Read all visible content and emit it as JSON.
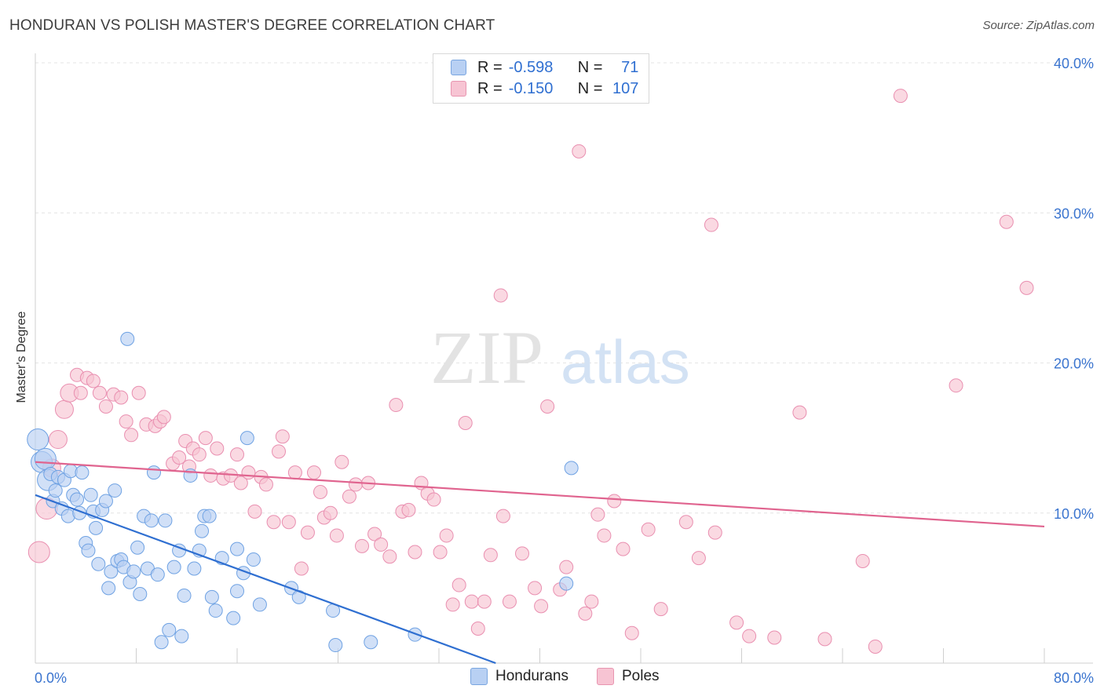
{
  "title": "HONDURAN VS POLISH MASTER'S DEGREE CORRELATION CHART",
  "source": "Source: ZipAtlas.com",
  "watermark": {
    "zip": "ZIP",
    "atlas": "atlas"
  },
  "legend_top": {
    "rows": [
      {
        "r_label": "R =",
        "r_value": "-0.598",
        "n_label": "N =",
        "n_value": "71"
      },
      {
        "r_label": "R =",
        "r_value": "-0.150",
        "n_label": "N =",
        "n_value": "107"
      }
    ]
  },
  "legend_bottom": {
    "hondurans": "Hondurans",
    "poles": "Poles"
  },
  "colors": {
    "blue": "#6fa2e3",
    "blue_fill": "#b8d0f3",
    "blue_line": "#2f6fd1",
    "pink": "#e98fb0",
    "pink_fill": "#f7c4d3",
    "pink_line": "#e0648f",
    "tick_text": "#3a74cf"
  },
  "chart_data": {
    "type": "scatter",
    "title": "HONDURAN VS POLISH MASTER'S DEGREE CORRELATION CHART",
    "ylabel": "Master's Degree",
    "xlabel": "",
    "xlim": [
      0,
      80
    ],
    "ylim": [
      0,
      40
    ],
    "x_tick_labels": [
      "0.0%",
      "80.0%"
    ],
    "y_ticks": [
      10,
      20,
      30,
      40
    ],
    "y_tick_labels": [
      "10.0%",
      "20.0%",
      "30.0%",
      "40.0%"
    ],
    "grid": true,
    "series": [
      {
        "name": "Hondurans",
        "R": -0.598,
        "N": 71,
        "trend": {
          "x": [
            0,
            36.5
          ],
          "y": [
            11.2,
            0.0
          ]
        },
        "points": [
          [
            0.2,
            14.9
          ],
          [
            0.5,
            13.4
          ],
          [
            0.8,
            13.6
          ],
          [
            1.0,
            12.2
          ],
          [
            1.2,
            12.6
          ],
          [
            1.4,
            10.8
          ],
          [
            1.6,
            11.5
          ],
          [
            1.8,
            12.4
          ],
          [
            2.1,
            10.3
          ],
          [
            2.3,
            12.2
          ],
          [
            2.6,
            9.8
          ],
          [
            2.8,
            12.8
          ],
          [
            3.0,
            11.2
          ],
          [
            3.3,
            10.9
          ],
          [
            3.5,
            10.0
          ],
          [
            3.7,
            12.7
          ],
          [
            4.0,
            8.0
          ],
          [
            4.2,
            7.5
          ],
          [
            4.4,
            11.2
          ],
          [
            4.6,
            10.1
          ],
          [
            4.8,
            9.0
          ],
          [
            5.0,
            6.6
          ],
          [
            5.3,
            10.2
          ],
          [
            5.6,
            10.8
          ],
          [
            5.8,
            5.0
          ],
          [
            6.0,
            6.1
          ],
          [
            6.3,
            11.5
          ],
          [
            6.5,
            6.8
          ],
          [
            6.8,
            6.9
          ],
          [
            7.0,
            6.4
          ],
          [
            7.3,
            21.6
          ],
          [
            7.5,
            5.4
          ],
          [
            7.8,
            6.1
          ],
          [
            8.1,
            7.7
          ],
          [
            8.3,
            4.6
          ],
          [
            8.6,
            9.8
          ],
          [
            8.9,
            6.3
          ],
          [
            9.2,
            9.5
          ],
          [
            9.4,
            12.7
          ],
          [
            9.7,
            5.9
          ],
          [
            10.0,
            1.4
          ],
          [
            10.3,
            9.5
          ],
          [
            10.6,
            2.2
          ],
          [
            11.0,
            6.4
          ],
          [
            11.4,
            7.5
          ],
          [
            11.6,
            1.8
          ],
          [
            11.8,
            4.5
          ],
          [
            12.3,
            12.5
          ],
          [
            12.6,
            6.3
          ],
          [
            13.0,
            7.5
          ],
          [
            13.2,
            8.8
          ],
          [
            13.4,
            9.8
          ],
          [
            13.8,
            9.8
          ],
          [
            14.0,
            4.4
          ],
          [
            14.3,
            3.5
          ],
          [
            14.8,
            7.0
          ],
          [
            15.7,
            3.0
          ],
          [
            16.0,
            4.8
          ],
          [
            16.0,
            7.6
          ],
          [
            16.5,
            6.0
          ],
          [
            16.8,
            15.0
          ],
          [
            17.3,
            6.9
          ],
          [
            17.8,
            3.9
          ],
          [
            20.3,
            5.0
          ],
          [
            20.9,
            4.4
          ],
          [
            23.6,
            3.5
          ],
          [
            23.8,
            1.2
          ],
          [
            26.6,
            1.4
          ],
          [
            30.1,
            1.9
          ],
          [
            42.1,
            5.3
          ],
          [
            42.5,
            13.0
          ]
        ]
      },
      {
        "name": "Poles",
        "R": -0.15,
        "N": 107,
        "trend": {
          "x": [
            0,
            80
          ],
          "y": [
            13.4,
            9.1
          ]
        },
        "points": [
          [
            0.3,
            7.4
          ],
          [
            0.9,
            10.3
          ],
          [
            1.3,
            13.0
          ],
          [
            1.8,
            14.9
          ],
          [
            2.3,
            16.9
          ],
          [
            2.7,
            18.0
          ],
          [
            3.3,
            19.2
          ],
          [
            3.6,
            18.0
          ],
          [
            4.1,
            19.0
          ],
          [
            4.6,
            18.8
          ],
          [
            5.1,
            18.0
          ],
          [
            5.6,
            17.1
          ],
          [
            6.2,
            17.9
          ],
          [
            6.8,
            17.7
          ],
          [
            7.2,
            16.1
          ],
          [
            7.6,
            15.2
          ],
          [
            8.2,
            18.0
          ],
          [
            8.8,
            15.9
          ],
          [
            9.5,
            15.8
          ],
          [
            9.9,
            16.1
          ],
          [
            10.2,
            16.4
          ],
          [
            10.9,
            13.3
          ],
          [
            11.4,
            13.7
          ],
          [
            11.9,
            14.8
          ],
          [
            12.2,
            13.1
          ],
          [
            12.5,
            14.3
          ],
          [
            13.0,
            13.9
          ],
          [
            13.5,
            15.0
          ],
          [
            13.9,
            12.5
          ],
          [
            14.4,
            14.3
          ],
          [
            14.9,
            12.3
          ],
          [
            15.5,
            12.5
          ],
          [
            16.0,
            13.9
          ],
          [
            16.3,
            12.0
          ],
          [
            16.9,
            12.7
          ],
          [
            17.4,
            10.1
          ],
          [
            17.9,
            12.4
          ],
          [
            18.3,
            11.9
          ],
          [
            18.9,
            9.4
          ],
          [
            19.3,
            14.1
          ],
          [
            19.6,
            15.1
          ],
          [
            20.1,
            9.4
          ],
          [
            20.6,
            12.7
          ],
          [
            21.1,
            6.3
          ],
          [
            21.6,
            8.7
          ],
          [
            22.1,
            12.7
          ],
          [
            22.6,
            11.4
          ],
          [
            22.9,
            9.7
          ],
          [
            23.4,
            10.0
          ],
          [
            23.9,
            8.5
          ],
          [
            24.3,
            13.4
          ],
          [
            24.9,
            11.1
          ],
          [
            25.4,
            11.9
          ],
          [
            25.9,
            7.8
          ],
          [
            26.4,
            12.0
          ],
          [
            26.9,
            8.6
          ],
          [
            27.4,
            7.9
          ],
          [
            28.1,
            7.1
          ],
          [
            28.6,
            17.2
          ],
          [
            29.1,
            10.1
          ],
          [
            29.6,
            10.2
          ],
          [
            30.1,
            7.4
          ],
          [
            30.6,
            12.0
          ],
          [
            31.1,
            11.3
          ],
          [
            31.6,
            10.9
          ],
          [
            32.1,
            7.4
          ],
          [
            32.6,
            8.5
          ],
          [
            33.1,
            3.9
          ],
          [
            33.6,
            5.2
          ],
          [
            34.1,
            16.0
          ],
          [
            34.6,
            4.1
          ],
          [
            35.1,
            2.3
          ],
          [
            35.6,
            4.1
          ],
          [
            36.1,
            7.2
          ],
          [
            36.9,
            24.5
          ],
          [
            37.1,
            9.8
          ],
          [
            37.6,
            4.1
          ],
          [
            38.6,
            7.3
          ],
          [
            39.6,
            5.0
          ],
          [
            40.1,
            3.8
          ],
          [
            40.6,
            17.1
          ],
          [
            41.6,
            4.9
          ],
          [
            42.1,
            6.4
          ],
          [
            43.1,
            34.1
          ],
          [
            43.6,
            3.3
          ],
          [
            44.1,
            4.1
          ],
          [
            44.6,
            9.9
          ],
          [
            45.1,
            8.5
          ],
          [
            45.9,
            10.8
          ],
          [
            46.6,
            7.6
          ],
          [
            47.3,
            2.0
          ],
          [
            48.6,
            8.9
          ],
          [
            49.6,
            3.6
          ],
          [
            51.6,
            9.4
          ],
          [
            52.6,
            7.0
          ],
          [
            53.6,
            29.2
          ],
          [
            53.9,
            8.7
          ],
          [
            55.6,
            2.7
          ],
          [
            56.6,
            1.8
          ],
          [
            58.6,
            1.7
          ],
          [
            60.6,
            16.7
          ],
          [
            62.6,
            1.6
          ],
          [
            65.6,
            6.8
          ],
          [
            66.6,
            1.1
          ],
          [
            68.6,
            37.8
          ],
          [
            73.0,
            18.5
          ],
          [
            77.0,
            29.4
          ],
          [
            78.6,
            25.0
          ]
        ]
      }
    ]
  }
}
